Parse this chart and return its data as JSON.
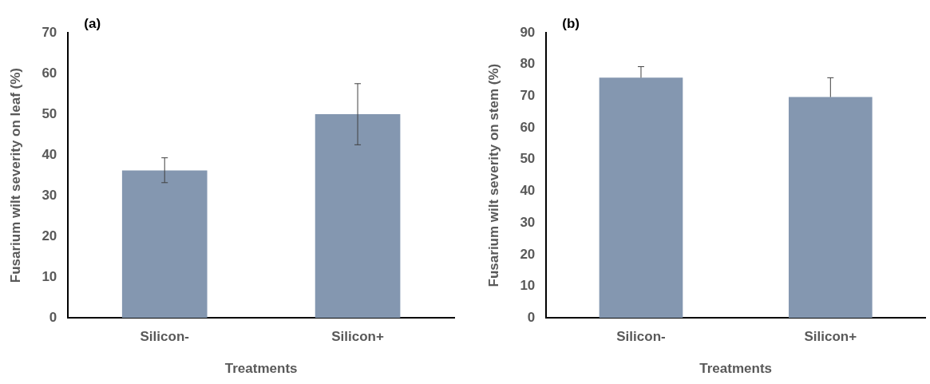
{
  "chart_data": [
    {
      "type": "bar",
      "title": "(a)",
      "xlabel": "Treatments",
      "ylabel": "Fusarium wilt severity on leaf (%)",
      "categories": [
        "Silicon-",
        "Silicon+"
      ],
      "series": [
        {
          "color": "#8497b0",
          "values": [
            36.2,
            50.0
          ],
          "errors": [
            [
              33.2,
              39.3
            ],
            [
              42.5,
              57.5
            ]
          ]
        }
      ],
      "ylim": [
        0,
        70
      ],
      "yticks": [
        0,
        10,
        20,
        30,
        40,
        50,
        60,
        70
      ],
      "grid": false,
      "legend": false
    },
    {
      "type": "bar",
      "title": "(b)",
      "xlabel": "Treatments",
      "ylabel": "Fusarium wilt severity on stem (%)",
      "categories": [
        "Silicon-",
        "Silicon+"
      ],
      "series": [
        {
          "color": "#8497b0",
          "values": [
            75.8,
            69.7
          ],
          "errors": [
            [
              75.8,
              79.3
            ],
            [
              69.7,
              75.8
            ]
          ]
        }
      ],
      "ylim": [
        0,
        90
      ],
      "yticks": [
        0,
        10,
        20,
        30,
        40,
        50,
        60,
        70,
        80,
        90
      ],
      "grid": false,
      "legend": false
    }
  ]
}
